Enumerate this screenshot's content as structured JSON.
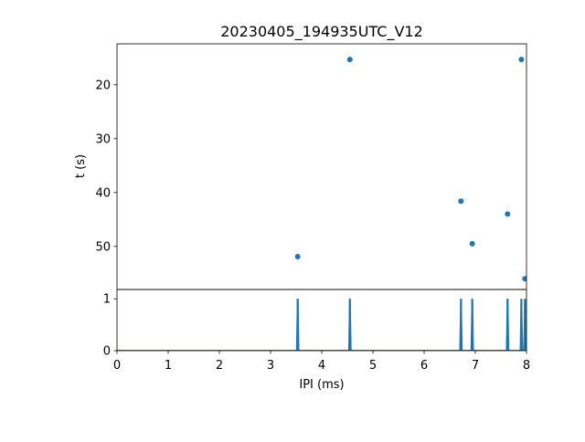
{
  "chart_data": [
    {
      "type": "scatter",
      "title": "20230405_194935UTC_V12",
      "xlabel": "",
      "ylabel": "t (s)",
      "xlim": [
        0,
        8
      ],
      "ylim": [
        58,
        12.4
      ],
      "y_inverted": true,
      "yticks": [
        20,
        30,
        40,
        50
      ],
      "color": "#1f77b4",
      "x": [
        3.53,
        4.55,
        6.72,
        6.94,
        7.63,
        7.9,
        7.97
      ],
      "y": [
        51.9,
        15.3,
        41.6,
        49.5,
        44.0,
        15.3,
        56.0
      ]
    },
    {
      "type": "line",
      "xlabel": "IPI (ms)",
      "ylabel": "",
      "xlim": [
        0,
        8
      ],
      "ylim": [
        0,
        1.18
      ],
      "xticks": [
        0,
        1,
        2,
        3,
        4,
        5,
        6,
        7,
        8
      ],
      "yticks": [
        0,
        1
      ],
      "color": "#1f77b4",
      "spikes_x": [
        3.53,
        4.55,
        6.72,
        6.94,
        7.63,
        7.9,
        7.97
      ],
      "spike_value": 1
    }
  ]
}
